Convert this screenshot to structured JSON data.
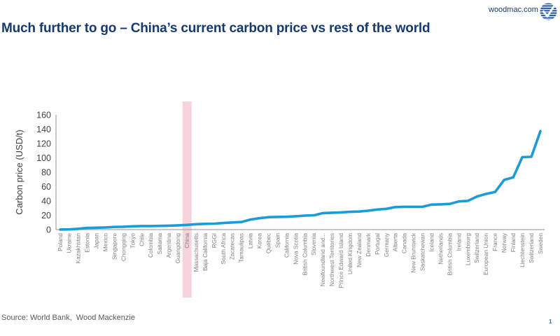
{
  "header": {
    "title": "Much further to go – China’s current carbon price vs rest of the world",
    "site_link": "woodmac.com",
    "logo": "woodmac-globe-check-logo"
  },
  "footer": {
    "source": "Source: World Bank,  Wood Mackenzie",
    "page_number": "1"
  },
  "colors": {
    "title_navy": "#173a6e",
    "line_blue": "#1b9cd8",
    "highlight_pink": "#f7d3db",
    "axis_gray": "#a6a6a6",
    "tick_label_gray": "#404040",
    "category_label_gray": "#808080",
    "source_gray": "#595959",
    "page_number_blue": "#2e74b5",
    "logo_blue": "#2a5ea9"
  },
  "chart_data": {
    "type": "line",
    "title": "",
    "ylabel": "Carbon price (USD/t)",
    "xlabel": "",
    "ylim": [
      0,
      160
    ],
    "yticks": [
      0,
      20,
      40,
      60,
      80,
      100,
      120,
      140,
      160
    ],
    "grid": false,
    "legend": "none",
    "highlight_category": "China",
    "categories": [
      "Poland",
      "Ukraine",
      "Kazakhstan",
      "Estonia",
      "Japan",
      "Mexico",
      "Singapore",
      "Chongqing",
      "Tokyo",
      "Chile",
      "Colombia",
      "Saitama",
      "Argentina",
      "Guangdong",
      "China",
      "Massachusetts",
      "Baja California",
      "RGGI",
      "South Africa",
      "Zacatecas",
      "Tamaulipas",
      "Latvia",
      "Korea",
      "Québec",
      "Spain",
      "California",
      "Nova Scotia",
      "British Columbia",
      "Slovenia",
      "Newfoundland and...",
      "Northwest Territories",
      "Prince Edward Island",
      "United Kingdom",
      "New Zealand",
      "Denmark",
      "Portugal",
      "Germany",
      "Alberta",
      "Canada",
      "New Brunswick",
      "Saskatchewan",
      "Iceland",
      "Netherlands",
      "British Columbia",
      "Ireland",
      "Luxembourg",
      "Switzerland",
      "European Union",
      "France",
      "Norway",
      "Finland",
      "Liechtenstein",
      "Switzerland",
      "Sweden"
    ],
    "values": [
      0.1,
      0.3,
      1.2,
      2.3,
      2.6,
      3.0,
      3.7,
      4.0,
      4.6,
      5.0,
      5.0,
      5.2,
      5.5,
      6.0,
      6.5,
      7.5,
      8.0,
      8.3,
      9.2,
      10.0,
      10.5,
      14.0,
      15.9,
      17.4,
      17.7,
      17.9,
      18.6,
      19.5,
      19.9,
      23.0,
      23.5,
      24.0,
      24.8,
      25.2,
      26.3,
      28.0,
      29.0,
      31.4,
      31.8,
      31.8,
      31.8,
      34.8,
      35.2,
      35.8,
      39.3,
      40.1,
      46.1,
      49.8,
      52.4,
      69.3,
      72.8,
      101.0,
      101.5,
      137.2
    ]
  }
}
